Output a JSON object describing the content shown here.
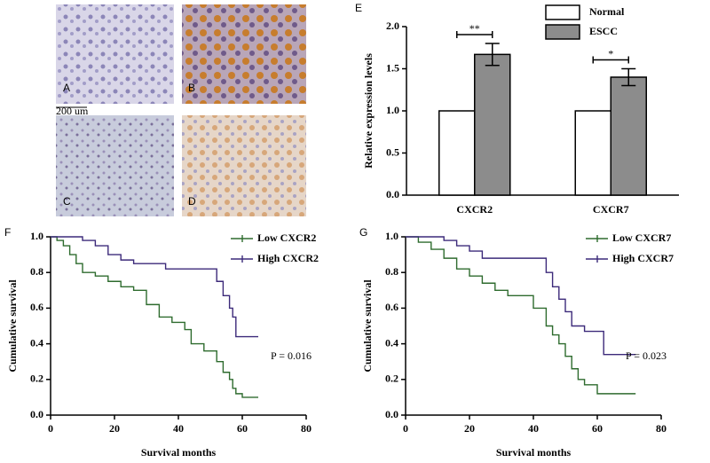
{
  "images": {
    "labels": [
      "A",
      "B",
      "C",
      "D"
    ],
    "scale_bar": "200 um"
  },
  "chart_data": [
    {
      "type": "bar",
      "panel_label": "E",
      "ylabel": "Relative expression levels",
      "categories": [
        "CXCR2",
        "CXCR7"
      ],
      "significance": [
        "**",
        "*"
      ],
      "series": [
        {
          "name": "Normal",
          "color": "#ffffff",
          "values": [
            1.0,
            1.0
          ]
        },
        {
          "name": "ESCC",
          "color": "#8c8c8c",
          "values": [
            1.67,
            1.4
          ],
          "errors": [
            0.13,
            0.1
          ]
        }
      ],
      "ylim": [
        0,
        2
      ],
      "yticks": [
        {
          "value": 0,
          "label": "0.0"
        },
        0.5,
        {
          "value": 1,
          "label": "1.0"
        },
        1.5,
        {
          "value": 2,
          "label": "2.0"
        }
      ]
    },
    {
      "type": "step",
      "panel_label": "F",
      "xlabel": "Survival months",
      "ylabel": "Cumulative survival",
      "annotation": "P = 0.016",
      "series": [
        {
          "name": "Low CXCR2",
          "color": "#2e6b2e",
          "x": [
            0,
            2,
            4,
            6,
            8,
            10,
            14,
            18,
            22,
            26,
            30,
            34,
            38,
            42,
            44,
            48,
            52,
            54,
            56,
            57,
            58,
            60,
            65
          ],
          "values": [
            1.0,
            0.98,
            0.95,
            0.9,
            0.85,
            0.8,
            0.78,
            0.75,
            0.72,
            0.7,
            0.62,
            0.55,
            0.52,
            0.48,
            0.4,
            0.36,
            0.3,
            0.24,
            0.2,
            0.15,
            0.12,
            0.1,
            0.1
          ]
        },
        {
          "name": "High CXCR2",
          "color": "#3c2a7a",
          "x": [
            0,
            10,
            14,
            18,
            22,
            26,
            36,
            52,
            54,
            56,
            57,
            58,
            65
          ],
          "values": [
            1.0,
            0.98,
            0.95,
            0.9,
            0.87,
            0.85,
            0.82,
            0.75,
            0.67,
            0.6,
            0.55,
            0.44,
            0.44
          ]
        }
      ],
      "xlim": [
        0,
        80
      ],
      "xticks": [
        0,
        20,
        40,
        60,
        80
      ],
      "ylim": [
        0,
        1
      ],
      "yticks": [
        {
          "value": 0,
          "label": "0.0"
        },
        0.2,
        0.4,
        0.6,
        0.8,
        {
          "value": 1,
          "label": "1.0"
        }
      ]
    },
    {
      "type": "step",
      "panel_label": "G",
      "xlabel": "Survival months",
      "ylabel": "Cumulative survival",
      "annotation": "P = 0.023",
      "series": [
        {
          "name": "Low CXCR7",
          "color": "#2e6b2e",
          "x": [
            0,
            4,
            8,
            12,
            16,
            20,
            24,
            28,
            32,
            40,
            44,
            46,
            48,
            50,
            52,
            54,
            56,
            60,
            72
          ],
          "values": [
            1.0,
            0.97,
            0.93,
            0.88,
            0.82,
            0.78,
            0.74,
            0.7,
            0.67,
            0.6,
            0.5,
            0.45,
            0.4,
            0.33,
            0.26,
            0.2,
            0.17,
            0.12,
            0.12
          ]
        },
        {
          "name": "High CXCR7",
          "color": "#3c2a7a",
          "x": [
            0,
            12,
            16,
            20,
            24,
            40,
            44,
            46,
            48,
            50,
            52,
            56,
            62,
            72
          ],
          "values": [
            1.0,
            0.98,
            0.95,
            0.92,
            0.88,
            0.88,
            0.8,
            0.72,
            0.65,
            0.58,
            0.5,
            0.47,
            0.34,
            0.34
          ]
        }
      ],
      "xlim": [
        0,
        80
      ],
      "xticks": [
        0,
        20,
        40,
        60,
        80
      ],
      "ylim": [
        0,
        1
      ],
      "yticks": [
        {
          "value": 0,
          "label": "0.0"
        },
        0.2,
        0.4,
        0.6,
        0.8,
        {
          "value": 1,
          "label": "1.0"
        }
      ]
    }
  ]
}
